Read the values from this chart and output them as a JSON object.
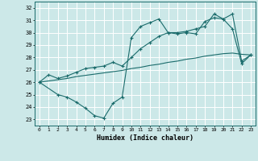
{
  "title": "",
  "xlabel": "Humidex (Indice chaleur)",
  "xlim": [
    -0.5,
    23.5
  ],
  "ylim": [
    22.5,
    32.5
  ],
  "xticks": [
    0,
    1,
    2,
    3,
    4,
    5,
    6,
    7,
    8,
    9,
    10,
    11,
    12,
    13,
    14,
    15,
    16,
    17,
    18,
    19,
    20,
    21,
    22,
    23
  ],
  "yticks": [
    23,
    24,
    25,
    26,
    27,
    28,
    29,
    30,
    31,
    32
  ],
  "bg_color": "#cce8e8",
  "line_color": "#1a6b6b",
  "grid_color": "#ffffff",
  "line1_x": [
    0,
    1,
    2,
    3,
    4,
    5,
    6,
    7,
    8,
    9,
    10,
    11,
    12,
    13,
    14,
    15,
    16,
    17,
    18,
    19,
    20,
    21,
    22,
    23
  ],
  "line1_y": [
    26.0,
    26.1,
    26.2,
    26.3,
    26.45,
    26.55,
    26.65,
    26.75,
    26.85,
    26.95,
    27.1,
    27.2,
    27.35,
    27.45,
    27.6,
    27.7,
    27.85,
    27.95,
    28.1,
    28.2,
    28.3,
    28.35,
    28.25,
    28.2
  ],
  "line2_x": [
    0,
    2,
    3,
    4,
    5,
    6,
    7,
    8,
    9,
    10,
    11,
    12,
    13,
    14,
    15,
    16,
    17,
    18,
    19,
    20,
    21,
    22,
    23
  ],
  "line2_y": [
    26.0,
    25.0,
    24.8,
    24.4,
    23.9,
    23.3,
    23.1,
    24.3,
    24.8,
    29.6,
    30.5,
    30.8,
    31.1,
    30.0,
    29.9,
    30.0,
    29.9,
    30.9,
    31.2,
    31.1,
    30.3,
    27.5,
    28.2
  ],
  "line3_x": [
    0,
    1,
    2,
    3,
    4,
    5,
    6,
    7,
    8,
    9,
    10,
    11,
    12,
    13,
    14,
    15,
    16,
    17,
    18,
    19,
    20,
    21,
    22,
    23
  ],
  "line3_y": [
    26.0,
    26.6,
    26.3,
    26.5,
    26.8,
    27.1,
    27.2,
    27.3,
    27.6,
    27.3,
    28.0,
    28.7,
    29.2,
    29.7,
    30.0,
    30.0,
    30.1,
    30.3,
    30.5,
    31.5,
    31.1,
    31.5,
    27.7,
    28.2
  ]
}
